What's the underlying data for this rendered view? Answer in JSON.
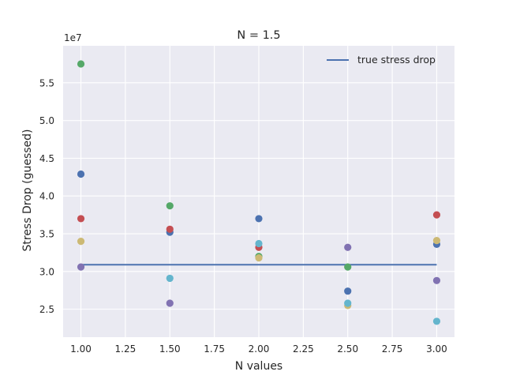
{
  "chart_data": {
    "type": "scatter",
    "title": "N = 1.5",
    "xlabel": "N values",
    "ylabel": "Stress Drop (guessed)",
    "offset_text": "1e7",
    "xlim": [
      0.9,
      3.1
    ],
    "ylim": [
      21300000,
      59900000
    ],
    "x_ticks": [
      1.0,
      1.25,
      1.5,
      1.75,
      2.0,
      2.25,
      2.5,
      2.75,
      3.0
    ],
    "x_tick_labels": [
      "1.00",
      "1.25",
      "1.50",
      "1.75",
      "2.00",
      "2.25",
      "2.50",
      "2.75",
      "3.00"
    ],
    "y_ticks": [
      25000000,
      30000000,
      35000000,
      40000000,
      45000000,
      50000000,
      55000000
    ],
    "y_tick_labels": [
      "2.5",
      "3.0",
      "3.5",
      "4.0",
      "4.5",
      "5.0",
      "5.5"
    ],
    "grid": true,
    "legend_position": "top-right",
    "line": {
      "name": "true stress drop",
      "x": [
        1.0,
        3.0
      ],
      "y": [
        30900000,
        30900000
      ],
      "color": "#4c72b0"
    },
    "series": [
      {
        "color": "#55a868",
        "points": [
          [
            1.0,
            57500000
          ],
          [
            1.5,
            38700000
          ],
          [
            2.0,
            32000000
          ],
          [
            2.5,
            30600000
          ]
        ]
      },
      {
        "color": "#4c72b0",
        "points": [
          [
            1.0,
            42900000
          ],
          [
            1.5,
            35200000
          ],
          [
            2.0,
            37000000
          ],
          [
            2.5,
            27400000
          ],
          [
            3.0,
            33600000
          ]
        ]
      },
      {
        "color": "#c44e52",
        "points": [
          [
            1.0,
            37000000
          ],
          [
            1.5,
            35600000
          ],
          [
            2.0,
            33200000
          ],
          [
            3.0,
            37500000
          ]
        ]
      },
      {
        "color": "#ccb974",
        "points": [
          [
            1.0,
            34000000
          ],
          [
            2.0,
            31800000
          ],
          [
            2.5,
            25500000
          ],
          [
            3.0,
            34100000
          ]
        ]
      },
      {
        "color": "#8172b2",
        "points": [
          [
            1.0,
            30600000
          ],
          [
            1.5,
            25800000
          ],
          [
            2.5,
            33200000
          ],
          [
            3.0,
            28800000
          ]
        ]
      },
      {
        "color": "#64b5cd",
        "points": [
          [
            1.5,
            29100000
          ],
          [
            2.0,
            33700000
          ],
          [
            2.5,
            25800000
          ],
          [
            3.0,
            23400000
          ]
        ]
      }
    ],
    "colors": {
      "axes_background": "#eaeaf2",
      "grid": "#ffffff",
      "text": "#262626"
    }
  }
}
